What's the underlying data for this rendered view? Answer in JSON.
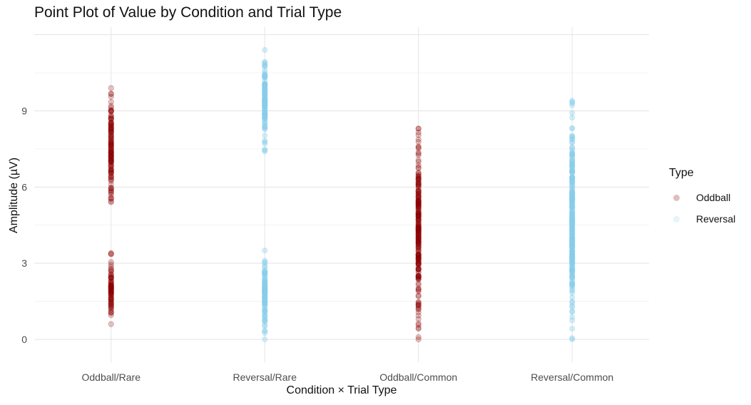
{
  "chart_data": {
    "type": "scatter",
    "title": "Point Plot of Value by Condition and Trial Type",
    "xlabel": "Condition × Trial Type",
    "ylabel": "Amplitude (µV)",
    "categories": [
      "Oddball/Rare",
      "Reversal/Rare",
      "Oddball/Common",
      "Reversal/Common"
    ],
    "ylim": [
      -0.9,
      12.3
    ],
    "yticks": [
      0,
      3,
      6,
      9
    ],
    "grid": true,
    "legend": {
      "title": "Type",
      "placement": "right",
      "entries": [
        {
          "label": "Oddball",
          "color": "#8B0000"
        },
        {
          "label": "Reversal",
          "color": "#87CEEB"
        }
      ]
    },
    "series": [
      {
        "name": "Oddball",
        "color": "#8B0000",
        "points": [
          {
            "category": "Oddball/Rare",
            "ranges": [
              [
                0.6,
                3.4
              ],
              [
                5.4,
                9.9
              ]
            ]
          },
          {
            "category": "Oddball/Common",
            "ranges": [
              [
                0.0,
                8.3
              ]
            ]
          }
        ]
      },
      {
        "name": "Reversal",
        "color": "#87CEEB",
        "points": [
          {
            "category": "Reversal/Rare",
            "ranges": [
              [
                0.0,
                3.5
              ],
              [
                7.4,
                11.4
              ]
            ]
          },
          {
            "category": "Reversal/Common",
            "ranges": [
              [
                0.0,
                9.4
              ]
            ]
          }
        ]
      }
    ]
  }
}
